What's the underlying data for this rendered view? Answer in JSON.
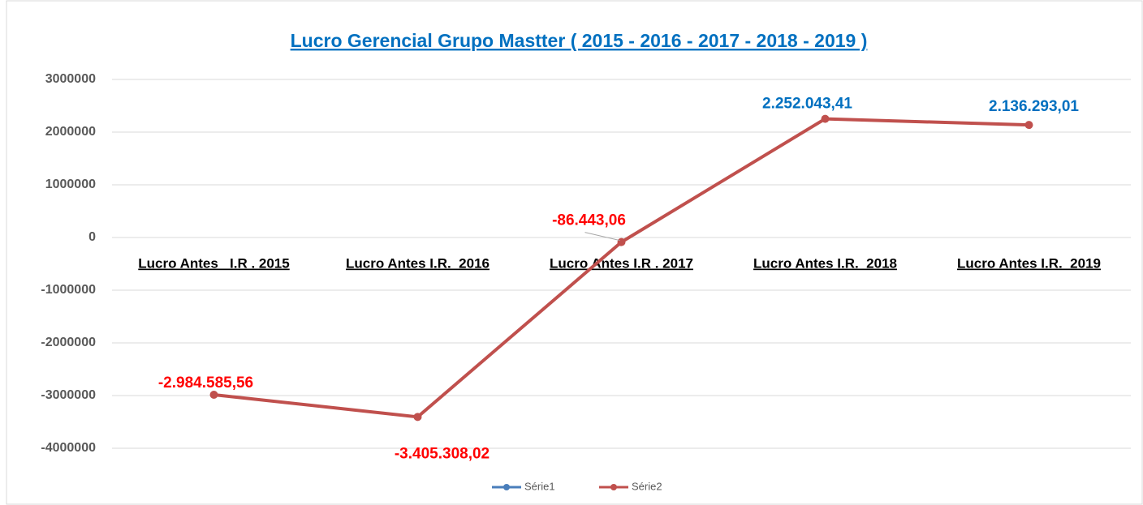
{
  "chart_data": {
    "type": "line",
    "title": "Lucro Gerencial Grupo Mastter ( 2015 - 2016 - 2017 - 2018  - 2019 )",
    "categories": [
      "Lucro Antes   I.R . 2015",
      "Lucro Antes I.R.  2016",
      "Lucro Antes I.R . 2017",
      "Lucro Antes I.R.  2018",
      "Lucro Antes I.R.  2019"
    ],
    "series": [
      {
        "name": "Série1",
        "color": "#4a7ebb",
        "values": [
          null,
          null,
          null,
          null,
          null
        ]
      },
      {
        "name": "Série2",
        "color": "#c0504d",
        "values": [
          -2984585.56,
          -3405308.02,
          -86443.06,
          2252043.41,
          2136293.01
        ],
        "value_labels": [
          "-2.984.585,56",
          "-3.405.308,02",
          "-86.443,06",
          "2.252.043,41",
          "2.136.293,01"
        ],
        "value_label_colors": [
          "#ff0000",
          "#ff0000",
          "#ff0000",
          "#0070c0",
          "#0070c0"
        ]
      }
    ],
    "ylim": [
      -4000000,
      3000000
    ],
    "yticks": [
      -4000000,
      -3000000,
      -2000000,
      -1000000,
      0,
      1000000,
      2000000,
      3000000
    ],
    "grid": true,
    "legend": "bottom",
    "title_color": "#0070c0"
  }
}
